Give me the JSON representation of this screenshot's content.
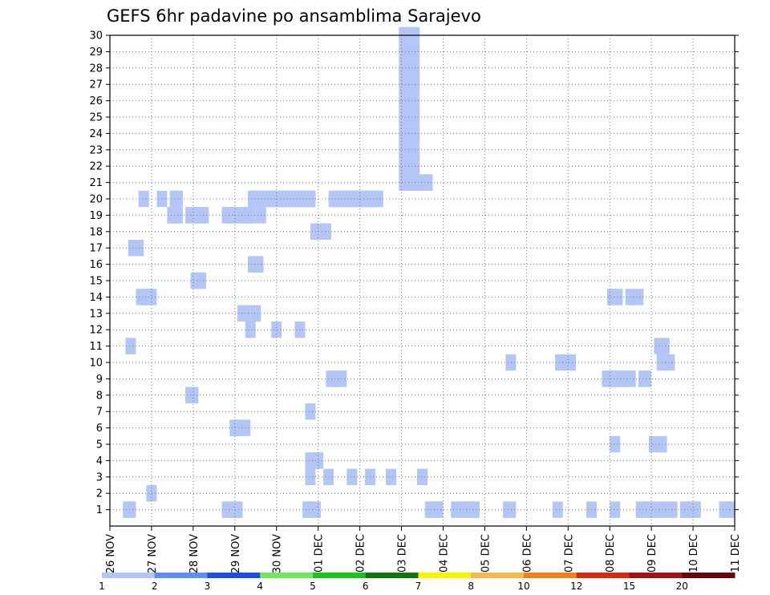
{
  "chart_data": {
    "type": "heatmap",
    "title": "GEFS 6hr padavine po ansamblima Sarajevo",
    "xlabel": "",
    "ylabel": "",
    "x_ticks": [
      "26 NOV",
      "27 NOV",
      "28 NOV",
      "29 NOV",
      "30 NOV",
      "01 DEC",
      "02 DEC",
      "03 DEC",
      "04 DEC",
      "05 DEC",
      "06 DEC",
      "07 DEC",
      "08 DEC",
      "09 DEC",
      "10 DEC",
      "11 DEC"
    ],
    "xlim": [
      0,
      15
    ],
    "y_ticks": [
      1,
      2,
      3,
      4,
      5,
      6,
      7,
      8,
      9,
      10,
      11,
      12,
      13,
      14,
      15,
      16,
      17,
      18,
      19,
      20,
      21,
      22,
      23,
      24,
      25,
      26,
      27,
      28,
      29,
      30
    ],
    "ylim": [
      0,
      30
    ],
    "grid": true,
    "legend": {
      "placement": "bottom",
      "levels": [
        1,
        2,
        3,
        4,
        5,
        6,
        7,
        8,
        10,
        12,
        15,
        20
      ],
      "colors": [
        "#b3c6f5",
        "#5e8ef0",
        "#1c4ee0",
        "#73e660",
        "#19c419",
        "#127512",
        "#f5f500",
        "#f5b84a",
        "#f08018",
        "#d42c10",
        "#a11212",
        "#690505"
      ]
    },
    "cells": [
      [
        1,
        1.25,
        1
      ],
      [
        1,
        1.5,
        1
      ],
      [
        1,
        10.75,
        1
      ],
      [
        1,
        30.25,
        1
      ],
      [
        1,
        30.5,
        1
      ],
      [
        1,
        30.75,
        1
      ],
      [
        1,
        31,
        1
      ],
      [
        1,
        32.75,
        1
      ],
      [
        1,
        33.5,
        1
      ],
      [
        1,
        34,
        1
      ],
      [
        1,
        34.25,
        1
      ],
      [
        1,
        34.5,
        1
      ],
      [
        1,
        37.75,
        1
      ],
      [
        1,
        38,
        1
      ],
      [
        1,
        42.5,
        1
      ],
      [
        1,
        45.75,
        1
      ],
      [
        1,
        48,
        1
      ],
      [
        1,
        50.75,
        1
      ],
      [
        1,
        51.75,
        1
      ],
      [
        1,
        52.75,
        1
      ],
      [
        1,
        54.75,
        1
      ],
      [
        1,
        55,
        1
      ],
      [
        1,
        55.25,
        1
      ],
      [
        1,
        55.5,
        1
      ],
      [
        1,
        55.75,
        1
      ],
      [
        1,
        58.5,
        1
      ],
      [
        1,
        58.75,
        1
      ],
      [
        1,
        59,
        1
      ],
      [
        1,
        11.25,
        1
      ],
      [
        1,
        11.5,
        1
      ],
      [
        1,
        11.75,
        1
      ],
      [
        1,
        51,
        1
      ],
      [
        1,
        53.5,
        1
      ],
      [
        1,
        33.25,
        1
      ],
      [
        1,
        50.5,
        1
      ],
      [
        1,
        52,
        1
      ],
      [
        1,
        55,
        1
      ],
      [
        1,
        18.75,
        1
      ],
      [
        1,
        19.25,
        1
      ],
      [
        1,
        18.5,
        1
      ],
      [
        2,
        3.5,
        1
      ],
      [
        3,
        18.75,
        1
      ],
      [
        3,
        20.5,
        1
      ],
      [
        3,
        22.75,
        1
      ],
      [
        3,
        24.5,
        1
      ],
      [
        3,
        26.5,
        1
      ],
      [
        3,
        29.5,
        1
      ],
      [
        4,
        18.75,
        1
      ],
      [
        4,
        19.25,
        1
      ],
      [
        4,
        19.5,
        1
      ],
      [
        5,
        48,
        1
      ],
      [
        5,
        51.75,
        1
      ],
      [
        5,
        52.5,
        1
      ],
      [
        6,
        11.5,
        1
      ],
      [
        6,
        11.75,
        1
      ],
      [
        6,
        12,
        1
      ],
      [
        6,
        12.25,
        1
      ],
      [
        6,
        12.5,
        1
      ],
      [
        7,
        18.75,
        1
      ],
      [
        8,
        7.25,
        1
      ],
      [
        8,
        7.5,
        1
      ],
      [
        9,
        20.75,
        1
      ],
      [
        9,
        21,
        1
      ],
      [
        9,
        21.5,
        1
      ],
      [
        9,
        21.75,
        1
      ],
      [
        9,
        47.25,
        1
      ],
      [
        9,
        47.5,
        1
      ],
      [
        9,
        47.75,
        1
      ],
      [
        9,
        48,
        1
      ],
      [
        9,
        48.25,
        1
      ],
      [
        9,
        48.5,
        1
      ],
      [
        9,
        49,
        1
      ],
      [
        9,
        49.25,
        1
      ],
      [
        9,
        49.5,
        1
      ],
      [
        9,
        50.75,
        1
      ],
      [
        9,
        51,
        1
      ],
      [
        10,
        38,
        1
      ],
      [
        10,
        42.75,
        1
      ],
      [
        10,
        43.75,
        1
      ],
      [
        10,
        52.5,
        1
      ],
      [
        10,
        53.25,
        1
      ],
      [
        11,
        1.5,
        1
      ],
      [
        11,
        52.25,
        1
      ],
      [
        11,
        52.5,
        1
      ],
      [
        11,
        52.75,
        1
      ],
      [
        12,
        13,
        1
      ],
      [
        12,
        15.5,
        1
      ],
      [
        12,
        17.75,
        1
      ],
      [
        13,
        12.25,
        1
      ],
      [
        13,
        12.5,
        1
      ],
      [
        13,
        13.5,
        1
      ],
      [
        14,
        2.5,
        1
      ],
      [
        14,
        2.75,
        1
      ],
      [
        14,
        3,
        1
      ],
      [
        14,
        3.25,
        1
      ],
      [
        14,
        3.5,
        1
      ],
      [
        14,
        47.75,
        1
      ],
      [
        14,
        48,
        1
      ],
      [
        14,
        48.25,
        1
      ],
      [
        14,
        49.5,
        1
      ],
      [
        14,
        50.25,
        1
      ],
      [
        15,
        7.75,
        1
      ],
      [
        15,
        8,
        1
      ],
      [
        15,
        8.25,
        1
      ],
      [
        16,
        13.25,
        1
      ],
      [
        16,
        13.5,
        1
      ],
      [
        16,
        13.75,
        1
      ],
      [
        17,
        1.75,
        1
      ],
      [
        17,
        2,
        1
      ],
      [
        17,
        2.25,
        1
      ],
      [
        18,
        19.25,
        1
      ],
      [
        18,
        19.5,
        1
      ],
      [
        18,
        19.75,
        1
      ],
      [
        18,
        20,
        1
      ],
      [
        18,
        20.25,
        1
      ],
      [
        19,
        5.5,
        1
      ],
      [
        19,
        5.75,
        1
      ],
      [
        19,
        6,
        1
      ],
      [
        19,
        7.25,
        1
      ],
      [
        19,
        7.5,
        1
      ],
      [
        19,
        7.75,
        1
      ],
      [
        19,
        8,
        1
      ],
      [
        19,
        8.25,
        1
      ],
      [
        19,
        8.5,
        1
      ],
      [
        19,
        10.75,
        1
      ],
      [
        19,
        11,
        1
      ],
      [
        19,
        11.25,
        1
      ],
      [
        19,
        11.5,
        1
      ],
      [
        19,
        12.25,
        1
      ],
      [
        19,
        12.5,
        1
      ],
      [
        19,
        12.75,
        1
      ],
      [
        19,
        13,
        1
      ],
      [
        19,
        14,
        1
      ],
      [
        20,
        2.75,
        1
      ],
      [
        20,
        4.5,
        1
      ],
      [
        20,
        5.75,
        1
      ],
      [
        20,
        6,
        1
      ],
      [
        20,
        13.25,
        1
      ],
      [
        20,
        13.5,
        1
      ],
      [
        20,
        13.75,
        1
      ],
      [
        20,
        14.75,
        1
      ],
      [
        20,
        15,
        1
      ],
      [
        20,
        15.25,
        1
      ],
      [
        20,
        15.75,
        1
      ],
      [
        20,
        16,
        1
      ],
      [
        20,
        16.25,
        1
      ],
      [
        20,
        16.5,
        1
      ],
      [
        20,
        16.75,
        1
      ],
      [
        20,
        17,
        1
      ],
      [
        20,
        17.25,
        1
      ],
      [
        20,
        17.5,
        1
      ],
      [
        20,
        18,
        1
      ],
      [
        20,
        18.25,
        1
      ],
      [
        20,
        18.5,
        1
      ],
      [
        20,
        18.75,
        1
      ],
      [
        20,
        21,
        1
      ],
      [
        20,
        21.25,
        1
      ],
      [
        20,
        21.5,
        1
      ],
      [
        20,
        21.75,
        1
      ],
      [
        20,
        22,
        1
      ],
      [
        20,
        22.25,
        1
      ],
      [
        20,
        22.5,
        1
      ],
      [
        20,
        22.75,
        1
      ],
      [
        20,
        23,
        1
      ],
      [
        20,
        23.25,
        1
      ],
      [
        20,
        23.5,
        1
      ],
      [
        20,
        23.75,
        1
      ],
      [
        20,
        24,
        1
      ],
      [
        20,
        24.25,
        1
      ],
      [
        20,
        24.5,
        1
      ],
      [
        20,
        24.75,
        1
      ],
      [
        20,
        25,
        1
      ],
      [
        20,
        25.25,
        1
      ],
      [
        21,
        27.75,
        1
      ],
      [
        21,
        28,
        1
      ],
      [
        21,
        28.25,
        1
      ],
      [
        21,
        28.5,
        1
      ],
      [
        21,
        28.75,
        1
      ],
      [
        21,
        29,
        1
      ],
      [
        21,
        29.25,
        1
      ],
      [
        21,
        29.5,
        1
      ],
      [
        21,
        29.75,
        1
      ],
      [
        21,
        30,
        1
      ],
      [
        22,
        27.75,
        1
      ],
      [
        22,
        28,
        1
      ],
      [
        22,
        28.25,
        1
      ],
      [
        22,
        28.5,
        1
      ],
      [
        22,
        28.75,
        1
      ],
      [
        23,
        27.75,
        1
      ],
      [
        23,
        28,
        1
      ],
      [
        23,
        28.25,
        1
      ],
      [
        23,
        28.5,
        1
      ],
      [
        23,
        28.75,
        1
      ],
      [
        24,
        27.75,
        1
      ],
      [
        24,
        28,
        1
      ],
      [
        24,
        28.25,
        1
      ],
      [
        24,
        28.5,
        1
      ],
      [
        24,
        28.75,
        1
      ],
      [
        25,
        27.75,
        1
      ],
      [
        25,
        28,
        1
      ],
      [
        25,
        28.25,
        1
      ],
      [
        25,
        28.5,
        1
      ],
      [
        25,
        28.75,
        1
      ],
      [
        26,
        27.75,
        1
      ],
      [
        26,
        28,
        1
      ],
      [
        26,
        28.25,
        1
      ],
      [
        26,
        28.5,
        1
      ],
      [
        26,
        28.75,
        1
      ],
      [
        27,
        27.75,
        1
      ],
      [
        27,
        28,
        1
      ],
      [
        27,
        28.25,
        1
      ],
      [
        27,
        28.5,
        1
      ],
      [
        27,
        28.75,
        1
      ],
      [
        28,
        27.75,
        1
      ],
      [
        28,
        28,
        1
      ],
      [
        28,
        28.25,
        1
      ],
      [
        28,
        28.5,
        1
      ],
      [
        28,
        28.75,
        1
      ],
      [
        29,
        27.75,
        1
      ],
      [
        29,
        28,
        1
      ],
      [
        29,
        28.25,
        1
      ],
      [
        29,
        28.5,
        1
      ],
      [
        29,
        28.75,
        1
      ],
      [
        30,
        27.75,
        1
      ],
      [
        30,
        28,
        1
      ],
      [
        30,
        28.25,
        1
      ],
      [
        30,
        28.5,
        1
      ],
      [
        30,
        28.75,
        1
      ]
    ]
  }
}
